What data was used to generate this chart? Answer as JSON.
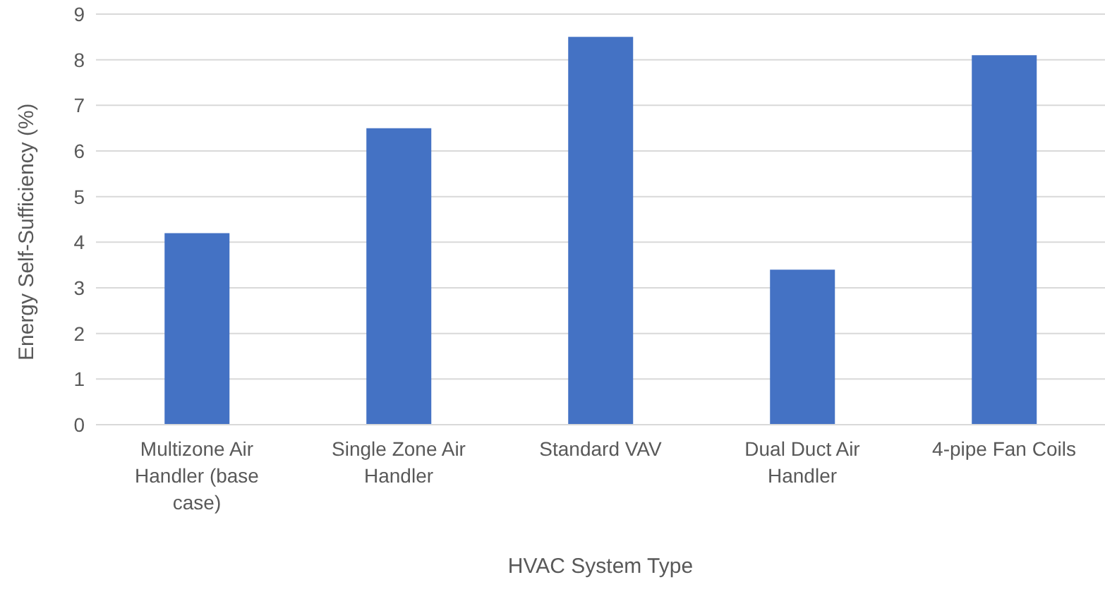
{
  "chart_data": {
    "type": "bar",
    "xlabel": "HVAC System Type",
    "ylabel": "Energy Self-Sufficiency (%)",
    "categories": [
      "Multizone Air Handler (base case)",
      "Single Zone Air Handler",
      "Standard VAV",
      "Dual Duct Air Handler",
      "4-pipe Fan Coils"
    ],
    "values": [
      4.2,
      6.5,
      8.5,
      3.4,
      8.1
    ],
    "color": "#4472c4",
    "ylim": [
      0,
      9
    ],
    "yticks": [
      0,
      1,
      2,
      3,
      4,
      5,
      6,
      7,
      8,
      9
    ],
    "grid": "y",
    "legend": false
  }
}
